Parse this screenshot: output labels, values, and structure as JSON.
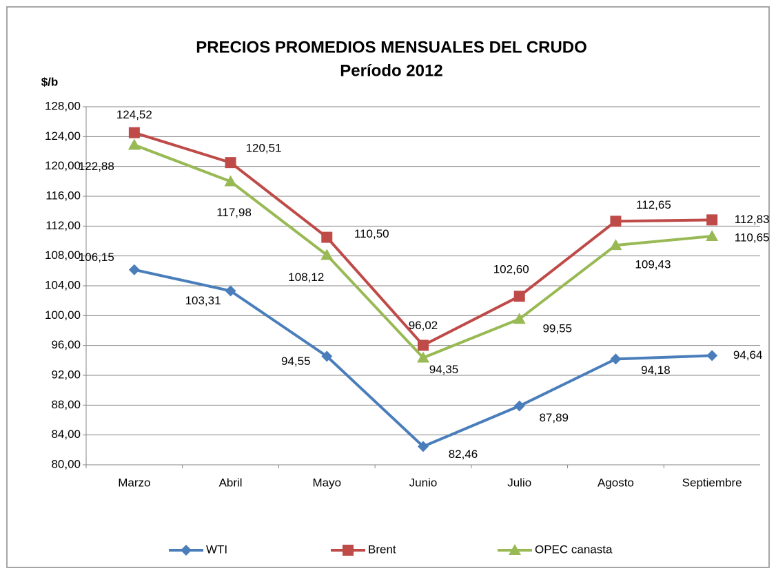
{
  "chart_data": {
    "type": "line",
    "title": "PRECIOS PROMEDIOS MENSUALES DEL CRUDO",
    "subtitle": "Período 2012",
    "y_label": "$/b",
    "categories": [
      "Marzo",
      "Abril",
      "Mayo",
      "Junio",
      "Julio",
      "Agosto",
      "Septiembre"
    ],
    "series": [
      {
        "name": "WTI",
        "color": "#4a7ebb",
        "marker": "diamond",
        "values": [
          106.15,
          103.31,
          94.55,
          82.46,
          87.89,
          94.18,
          94.64
        ],
        "value_labels": [
          "106,15",
          "103,31",
          "94,55",
          "82,46",
          "87,89",
          "94,18",
          "94,64"
        ]
      },
      {
        "name": "Brent",
        "color": "#be4b48",
        "marker": "square",
        "values": [
          124.52,
          120.51,
          110.5,
          96.02,
          102.6,
          112.65,
          112.83
        ],
        "value_labels": [
          "124,52",
          "120,51",
          "110,50",
          "96,02",
          "102,60",
          "112,65",
          "112,83"
        ]
      },
      {
        "name": "OPEC canasta",
        "color": "#98b954",
        "marker": "triangle",
        "values": [
          122.88,
          117.98,
          108.12,
          94.35,
          99.55,
          109.43,
          110.65
        ],
        "value_labels": [
          "122,88",
          "117,98",
          "108,12",
          "94,35",
          "99,55",
          "109,43",
          "110,65"
        ]
      }
    ],
    "ylim": [
      80,
      128
    ],
    "yticks": [
      {
        "value": 80,
        "label": "80,00"
      },
      {
        "value": 84,
        "label": "84,00"
      },
      {
        "value": 88,
        "label": "88,00"
      },
      {
        "value": 92,
        "label": "92,00"
      },
      {
        "value": 96,
        "label": "96,00"
      },
      {
        "value": 100,
        "label": "100,00"
      },
      {
        "value": 104,
        "label": "104,00"
      },
      {
        "value": 108,
        "label": "108,00"
      },
      {
        "value": 112,
        "label": "112,00"
      },
      {
        "value": 116,
        "label": "116,00"
      },
      {
        "value": 120,
        "label": "120,00"
      },
      {
        "value": 124,
        "label": "124,00"
      },
      {
        "value": 128,
        "label": "128,00"
      }
    ],
    "grid": true,
    "legend": "bottom"
  }
}
